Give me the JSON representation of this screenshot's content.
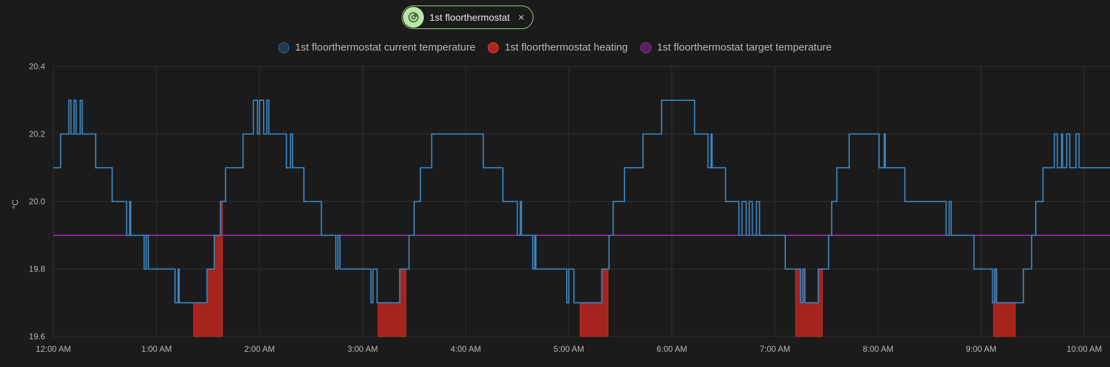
{
  "chip": {
    "label": "1st floorthermostat",
    "close": "×"
  },
  "legend": [
    {
      "label": "1st floorthermostat current temperature",
      "fill": "#1f3a55",
      "border": "#2e6a9a"
    },
    {
      "label": "1st floorthermostat heating",
      "fill": "#b3241e",
      "border": "#d73a2f"
    },
    {
      "label": "1st floorthermostat target temperature",
      "fill": "#5a1f5f",
      "border": "#8a2e8f"
    }
  ],
  "colors": {
    "current": "#3b84be",
    "heating": "#a5241e",
    "target": "#b22cc6",
    "grid": "#2f2f2f"
  },
  "chart_data": {
    "type": "line",
    "ylabel": "°C",
    "ylim": [
      19.6,
      20.4
    ],
    "yticks": [
      "19.6",
      "19.8",
      "20.0",
      "20.2",
      "20.4"
    ],
    "xlim": [
      0,
      10.25
    ],
    "xticks": [
      {
        "t": 0,
        "label": "12:00 AM"
      },
      {
        "t": 1,
        "label": "1:00 AM"
      },
      {
        "t": 2,
        "label": "2:00 AM"
      },
      {
        "t": 3,
        "label": "3:00 AM"
      },
      {
        "t": 4,
        "label": "4:00 AM"
      },
      {
        "t": 5,
        "label": "5:00 AM"
      },
      {
        "t": 6,
        "label": "6:00 AM"
      },
      {
        "t": 7,
        "label": "7:00 AM"
      },
      {
        "t": 8,
        "label": "8:00 AM"
      },
      {
        "t": 9,
        "label": "9:00 AM"
      },
      {
        "t": 10,
        "label": "10:00 AM"
      }
    ],
    "target_temperature": 19.9,
    "heating_periods": [
      [
        1.36,
        1.64
      ],
      [
        3.15,
        3.42
      ],
      [
        5.11,
        5.38
      ],
      [
        7.2,
        7.46
      ],
      [
        9.12,
        9.33
      ]
    ],
    "current_temperature": [
      [
        0.0,
        20.1
      ],
      [
        0.07,
        20.2
      ],
      [
        0.15,
        20.3
      ],
      [
        0.17,
        20.2
      ],
      [
        0.2,
        20.3
      ],
      [
        0.22,
        20.2
      ],
      [
        0.26,
        20.3
      ],
      [
        0.28,
        20.2
      ],
      [
        0.41,
        20.1
      ],
      [
        0.57,
        20.0
      ],
      [
        0.71,
        19.9
      ],
      [
        0.74,
        20.0
      ],
      [
        0.75,
        19.9
      ],
      [
        0.88,
        19.8
      ],
      [
        0.9,
        19.9
      ],
      [
        0.92,
        19.8
      ],
      [
        1.18,
        19.7
      ],
      [
        1.21,
        19.8
      ],
      [
        1.22,
        19.7
      ],
      [
        1.28,
        19.7
      ],
      [
        1.49,
        19.8
      ],
      [
        1.56,
        19.9
      ],
      [
        1.62,
        20.0
      ],
      [
        1.67,
        20.1
      ],
      [
        1.84,
        20.2
      ],
      [
        1.94,
        20.3
      ],
      [
        1.98,
        20.2
      ],
      [
        2.0,
        20.3
      ],
      [
        2.04,
        20.2
      ],
      [
        2.07,
        20.3
      ],
      [
        2.09,
        20.2
      ],
      [
        2.26,
        20.1
      ],
      [
        2.3,
        20.2
      ],
      [
        2.32,
        20.1
      ],
      [
        2.43,
        20.0
      ],
      [
        2.6,
        19.9
      ],
      [
        2.74,
        19.8
      ],
      [
        2.76,
        19.9
      ],
      [
        2.78,
        19.8
      ],
      [
        3.08,
        19.7
      ],
      [
        3.1,
        19.8
      ],
      [
        3.14,
        19.7
      ],
      [
        3.2,
        19.7
      ],
      [
        3.36,
        19.8
      ],
      [
        3.45,
        19.9
      ],
      [
        3.5,
        20.0
      ],
      [
        3.56,
        20.1
      ],
      [
        3.67,
        20.2
      ],
      [
        4.17,
        20.1
      ],
      [
        4.36,
        20.0
      ],
      [
        4.5,
        19.9
      ],
      [
        4.53,
        20.0
      ],
      [
        4.54,
        19.9
      ],
      [
        4.65,
        19.8
      ],
      [
        4.67,
        19.9
      ],
      [
        4.68,
        19.8
      ],
      [
        4.98,
        19.7
      ],
      [
        5.0,
        19.8
      ],
      [
        5.05,
        19.7
      ],
      [
        5.22,
        19.7
      ],
      [
        5.32,
        19.8
      ],
      [
        5.39,
        19.9
      ],
      [
        5.43,
        20.0
      ],
      [
        5.54,
        20.1
      ],
      [
        5.72,
        20.2
      ],
      [
        5.9,
        20.3
      ],
      [
        6.22,
        20.2
      ],
      [
        6.35,
        20.1
      ],
      [
        6.38,
        20.2
      ],
      [
        6.39,
        20.1
      ],
      [
        6.52,
        20.0
      ],
      [
        6.65,
        19.9
      ],
      [
        6.68,
        20.0
      ],
      [
        6.72,
        19.9
      ],
      [
        6.75,
        20.0
      ],
      [
        6.78,
        19.9
      ],
      [
        6.82,
        20.0
      ],
      [
        6.85,
        19.9
      ],
      [
        7.0,
        19.9
      ],
      [
        7.1,
        19.8
      ],
      [
        7.25,
        19.7
      ],
      [
        7.27,
        19.8
      ],
      [
        7.29,
        19.7
      ],
      [
        7.36,
        19.7
      ],
      [
        7.42,
        19.8
      ],
      [
        7.52,
        19.9
      ],
      [
        7.55,
        20.0
      ],
      [
        7.6,
        20.1
      ],
      [
        7.72,
        20.2
      ],
      [
        8.01,
        20.1
      ],
      [
        8.06,
        20.2
      ],
      [
        8.07,
        20.1
      ],
      [
        8.26,
        20.0
      ],
      [
        8.66,
        19.9
      ],
      [
        8.69,
        20.0
      ],
      [
        8.71,
        19.9
      ],
      [
        8.93,
        19.8
      ],
      [
        9.11,
        19.7
      ],
      [
        9.13,
        19.8
      ],
      [
        9.15,
        19.7
      ],
      [
        9.24,
        19.7
      ],
      [
        9.41,
        19.8
      ],
      [
        9.49,
        19.9
      ],
      [
        9.53,
        20.0
      ],
      [
        9.6,
        20.1
      ],
      [
        9.71,
        20.2
      ],
      [
        9.74,
        20.1
      ],
      [
        9.78,
        20.2
      ],
      [
        9.79,
        20.1
      ],
      [
        9.83,
        20.2
      ],
      [
        9.86,
        20.1
      ],
      [
        9.92,
        20.2
      ],
      [
        9.95,
        20.1
      ],
      [
        10.25,
        20.1
      ]
    ]
  }
}
